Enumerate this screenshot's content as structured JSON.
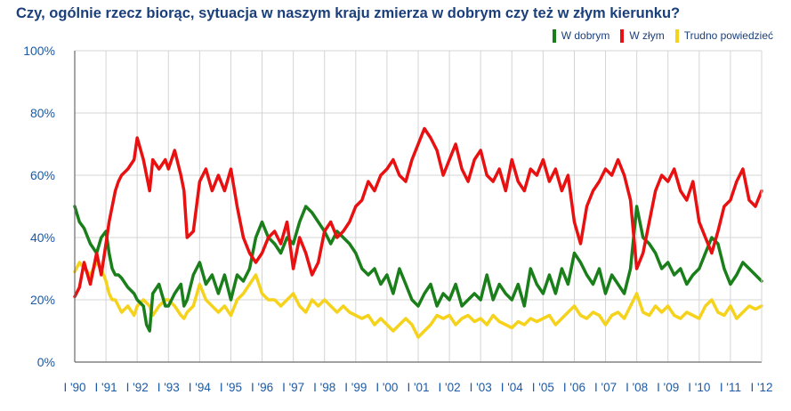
{
  "chart_data": {
    "type": "line",
    "title": "Czy, ogólnie rzecz biorąc, sytuacja w naszym kraju zmierza w dobrym czy też w złym kierunku?",
    "xlabel": "",
    "ylabel": "",
    "ylim": [
      0,
      100
    ],
    "xlim": [
      1990.0,
      2012.0
    ],
    "grid": true,
    "legend_position": "top-right",
    "y_ticks": [
      "0%",
      "20%",
      "40%",
      "60%",
      "80%",
      "100%"
    ],
    "y_tick_values": [
      0,
      20,
      40,
      60,
      80,
      100
    ],
    "x_ticks": [
      "I '90",
      "I '91",
      "I '92",
      "I '93",
      "I '94",
      "I '95",
      "I '96",
      "I '97",
      "I '98",
      "I '99",
      "I '00",
      "I '01",
      "I '02",
      "I '03",
      "I '04",
      "I '05",
      "I '06",
      "I '07",
      "I '08",
      "I '09",
      "I '10",
      "I '11",
      "I '12"
    ],
    "x_tick_values": [
      1990,
      1991,
      1992,
      1993,
      1994,
      1995,
      1996,
      1997,
      1998,
      1999,
      2000,
      2001,
      2002,
      2003,
      2004,
      2005,
      2006,
      2007,
      2008,
      2009,
      2010,
      2011,
      2012
    ],
    "series": [
      {
        "name": "W dobrym",
        "color": "#1a7f1a",
        "x": [
          1990.0,
          1990.15,
          1990.3,
          1990.5,
          1990.7,
          1990.85,
          1991.0,
          1991.1,
          1991.2,
          1991.3,
          1991.4,
          1991.5,
          1991.7,
          1991.9,
          1992.0,
          1992.2,
          1992.3,
          1992.4,
          1992.5,
          1992.7,
          1992.9,
          1993.0,
          1993.2,
          1993.4,
          1993.5,
          1993.6,
          1993.8,
          1994.0,
          1994.2,
          1994.4,
          1994.6,
          1994.8,
          1995.0,
          1995.2,
          1995.4,
          1995.6,
          1995.8,
          1996.0,
          1996.2,
          1996.4,
          1996.6,
          1996.8,
          1997.0,
          1997.2,
          1997.4,
          1997.6,
          1997.8,
          1998.0,
          1998.2,
          1998.4,
          1998.6,
          1998.8,
          1999.0,
          1999.2,
          1999.4,
          1999.6,
          1999.8,
          2000.0,
          2000.2,
          2000.4,
          2000.6,
          2000.8,
          2001.0,
          2001.2,
          2001.4,
          2001.6,
          2001.8,
          2002.0,
          2002.2,
          2002.4,
          2002.6,
          2002.8,
          2003.0,
          2003.2,
          2003.4,
          2003.6,
          2003.8,
          2004.0,
          2004.2,
          2004.4,
          2004.6,
          2004.8,
          2005.0,
          2005.2,
          2005.4,
          2005.6,
          2005.8,
          2006.0,
          2006.2,
          2006.4,
          2006.6,
          2006.8,
          2007.0,
          2007.2,
          2007.4,
          2007.6,
          2007.8,
          2008.0,
          2008.2,
          2008.4,
          2008.6,
          2008.8,
          2009.0,
          2009.2,
          2009.4,
          2009.6,
          2009.8,
          2010.0,
          2010.2,
          2010.4,
          2010.6,
          2010.8,
          2011.0,
          2011.2,
          2011.4,
          2011.6,
          2011.8,
          2012.0
        ],
        "values": [
          50,
          45,
          43,
          38,
          35,
          40,
          42,
          35,
          30,
          28,
          28,
          27,
          24,
          22,
          20,
          18,
          12,
          10,
          22,
          25,
          18,
          18,
          22,
          25,
          18,
          20,
          28,
          32,
          25,
          28,
          22,
          28,
          20,
          28,
          26,
          30,
          40,
          45,
          40,
          38,
          35,
          40,
          38,
          45,
          50,
          48,
          45,
          42,
          38,
          42,
          40,
          38,
          35,
          30,
          28,
          30,
          25,
          28,
          22,
          30,
          25,
          20,
          18,
          22,
          25,
          18,
          22,
          20,
          25,
          18,
          20,
          22,
          20,
          28,
          20,
          25,
          22,
          20,
          25,
          18,
          30,
          25,
          22,
          28,
          22,
          30,
          25,
          35,
          32,
          28,
          25,
          30,
          22,
          28,
          25,
          22,
          30,
          50,
          40,
          38,
          35,
          30,
          32,
          28,
          30,
          25,
          28,
          30,
          35,
          40,
          38,
          30,
          25,
          28,
          32,
          30,
          28,
          26
        ]
      },
      {
        "name": "W złym",
        "color": "#e81010",
        "x": [
          1990.0,
          1990.15,
          1990.3,
          1990.5,
          1990.7,
          1990.85,
          1991.0,
          1991.1,
          1991.2,
          1991.3,
          1991.4,
          1991.5,
          1991.7,
          1991.9,
          1992.0,
          1992.2,
          1992.3,
          1992.4,
          1992.5,
          1992.7,
          1992.9,
          1993.0,
          1993.2,
          1993.4,
          1993.5,
          1993.6,
          1993.8,
          1994.0,
          1994.2,
          1994.4,
          1994.6,
          1994.8,
          1995.0,
          1995.2,
          1995.4,
          1995.6,
          1995.8,
          1996.0,
          1996.2,
          1996.4,
          1996.6,
          1996.8,
          1997.0,
          1997.2,
          1997.4,
          1997.6,
          1997.8,
          1998.0,
          1998.2,
          1998.4,
          1998.6,
          1998.8,
          1999.0,
          1999.2,
          1999.4,
          1999.6,
          1999.8,
          2000.0,
          2000.2,
          2000.4,
          2000.6,
          2000.8,
          2001.0,
          2001.2,
          2001.4,
          2001.6,
          2001.8,
          2002.0,
          2002.2,
          2002.4,
          2002.6,
          2002.8,
          2003.0,
          2003.2,
          2003.4,
          2003.6,
          2003.8,
          2004.0,
          2004.2,
          2004.4,
          2004.6,
          2004.8,
          2005.0,
          2005.2,
          2005.4,
          2005.6,
          2005.8,
          2006.0,
          2006.2,
          2006.4,
          2006.6,
          2006.8,
          2007.0,
          2007.2,
          2007.4,
          2007.6,
          2007.8,
          2008.0,
          2008.2,
          2008.4,
          2008.6,
          2008.8,
          2009.0,
          2009.2,
          2009.4,
          2009.6,
          2009.8,
          2010.0,
          2010.2,
          2010.4,
          2010.6,
          2010.8,
          2011.0,
          2011.2,
          2011.4,
          2011.6,
          2011.8,
          2012.0
        ],
        "values": [
          21,
          24,
          32,
          25,
          35,
          28,
          38,
          45,
          50,
          55,
          58,
          60,
          62,
          65,
          72,
          65,
          60,
          55,
          65,
          62,
          65,
          62,
          68,
          60,
          55,
          40,
          42,
          58,
          62,
          55,
          60,
          55,
          62,
          50,
          40,
          35,
          32,
          35,
          40,
          42,
          38,
          45,
          30,
          40,
          35,
          28,
          32,
          42,
          45,
          40,
          42,
          45,
          50,
          52,
          58,
          55,
          60,
          62,
          65,
          60,
          58,
          65,
          70,
          75,
          72,
          68,
          60,
          65,
          70,
          62,
          58,
          65,
          68,
          60,
          58,
          62,
          55,
          65,
          58,
          55,
          62,
          60,
          65,
          58,
          62,
          55,
          60,
          45,
          38,
          50,
          55,
          58,
          62,
          60,
          65,
          60,
          52,
          30,
          35,
          45,
          55,
          60,
          58,
          62,
          55,
          52,
          58,
          45,
          40,
          35,
          42,
          50,
          52,
          58,
          62,
          52,
          50,
          55
        ]
      },
      {
        "name": "Trudno powiedzieć",
        "color": "#f5d21c",
        "x": [
          1990.0,
          1990.15,
          1990.3,
          1990.5,
          1990.7,
          1990.85,
          1991.0,
          1991.1,
          1991.2,
          1991.3,
          1991.4,
          1991.5,
          1991.7,
          1991.9,
          1992.0,
          1992.2,
          1992.3,
          1992.4,
          1992.5,
          1992.7,
          1992.9,
          1993.0,
          1993.2,
          1993.4,
          1993.5,
          1993.6,
          1993.8,
          1994.0,
          1994.2,
          1994.4,
          1994.6,
          1994.8,
          1995.0,
          1995.2,
          1995.4,
          1995.6,
          1995.8,
          1996.0,
          1996.2,
          1996.4,
          1996.6,
          1996.8,
          1997.0,
          1997.2,
          1997.4,
          1997.6,
          1997.8,
          1998.0,
          1998.2,
          1998.4,
          1998.6,
          1998.8,
          1999.0,
          1999.2,
          1999.4,
          1999.6,
          1999.8,
          2000.0,
          2000.2,
          2000.4,
          2000.6,
          2000.8,
          2001.0,
          2001.2,
          2001.4,
          2001.6,
          2001.8,
          2002.0,
          2002.2,
          2002.4,
          2002.6,
          2002.8,
          2003.0,
          2003.2,
          2003.4,
          2003.6,
          2003.8,
          2004.0,
          2004.2,
          2004.4,
          2004.6,
          2004.8,
          2005.0,
          2005.2,
          2005.4,
          2005.6,
          2005.8,
          2006.0,
          2006.2,
          2006.4,
          2006.6,
          2006.8,
          2007.0,
          2007.2,
          2007.4,
          2007.6,
          2007.8,
          2008.0,
          2008.2,
          2008.4,
          2008.6,
          2008.8,
          2009.0,
          2009.2,
          2009.4,
          2009.6,
          2009.8,
          2010.0,
          2010.2,
          2010.4,
          2010.6,
          2010.8,
          2011.0,
          2011.2,
          2011.4,
          2011.6,
          2011.8,
          2012.0
        ],
        "values": [
          29,
          32,
          30,
          28,
          32,
          30,
          26,
          22,
          20,
          20,
          18,
          16,
          18,
          15,
          18,
          20,
          19,
          18,
          15,
          18,
          20,
          20,
          18,
          15,
          14,
          16,
          18,
          25,
          20,
          18,
          16,
          18,
          15,
          20,
          22,
          25,
          28,
          22,
          20,
          20,
          18,
          20,
          22,
          18,
          16,
          20,
          18,
          20,
          18,
          16,
          18,
          16,
          15,
          14,
          15,
          12,
          14,
          12,
          10,
          12,
          14,
          12,
          8,
          10,
          12,
          15,
          14,
          15,
          12,
          14,
          15,
          13,
          14,
          12,
          15,
          13,
          12,
          11,
          13,
          12,
          14,
          13,
          14,
          15,
          12,
          14,
          16,
          18,
          15,
          14,
          16,
          15,
          12,
          15,
          16,
          14,
          18,
          22,
          16,
          15,
          18,
          16,
          18,
          15,
          14,
          16,
          15,
          14,
          18,
          20,
          16,
          15,
          18,
          14,
          16,
          18,
          17,
          18
        ]
      }
    ]
  }
}
